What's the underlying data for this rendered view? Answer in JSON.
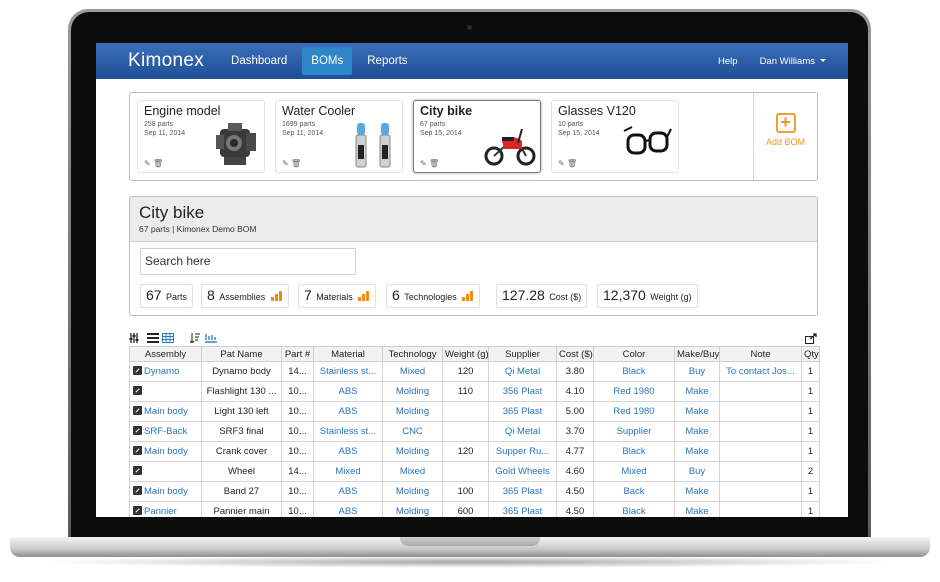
{
  "nav": {
    "brand": "Kimonex",
    "items": [
      "Dashboard",
      "BOMs",
      "Reports"
    ],
    "active": "BOMs",
    "help": "Help",
    "user": "Dan Williams"
  },
  "bom_cards": [
    {
      "title": "Engine model",
      "parts": "258 parts",
      "date": "Sep 11, 2014",
      "image_icon": "engine-image"
    },
    {
      "title": "Water Cooler",
      "parts": "1699 parts",
      "date": "Sep 11, 2014",
      "image_icon": "water-cooler-image"
    },
    {
      "title": "City bike",
      "parts": "67 parts",
      "date": "Sep 15, 2014",
      "image_icon": "scooter-image"
    },
    {
      "title": "Glasses V120",
      "parts": "10 parts",
      "date": "Sep 15, 2014",
      "image_icon": "glasses-image"
    }
  ],
  "card_actions": {
    "edit": "✎",
    "delete": "🗑"
  },
  "add_bom": {
    "label": "Add BOM",
    "icon": "+"
  },
  "detail": {
    "title": "City bike",
    "subtitle": "67 parts | Kimonex Demo BOM",
    "search_placeholder": "Search here",
    "stats": [
      {
        "num": "67",
        "label": "Parts"
      },
      {
        "num": "8",
        "label": "Assemblies"
      },
      {
        "num": "7",
        "label": "Materials"
      },
      {
        "num": "6",
        "label": "Technologies"
      },
      {
        "num": "127.28",
        "label": "Cost ($)"
      },
      {
        "num": "12,370",
        "label": "Weight (g)"
      }
    ]
  },
  "colors": {
    "nav": "#2a5ea8",
    "active_tab": "#2e86c9",
    "link": "#2a73b8",
    "accent": "#f28a1a"
  },
  "table": {
    "columns": [
      "Assembly",
      "Pat Name",
      "Part #",
      "Material",
      "Technology",
      "Weight (g)",
      "Supplier",
      "Cost ($)",
      "Color",
      "Make/Buy",
      "Note",
      "Qty."
    ],
    "rows": [
      [
        "Dynamo",
        "Dynamo body",
        "14...",
        "Stainless st...",
        "Mixed",
        "120",
        "Qi Metal",
        "3.80",
        "Black",
        "Buy",
        "To contact Jos...",
        "1"
      ],
      [
        "",
        "Flashlight 130 ...",
        "10...",
        "ABS",
        "Molding",
        "110",
        "356 Plast",
        "4.10",
        "Red 1980",
        "Make",
        "",
        "1"
      ],
      [
        "Main body",
        "Light 130 left",
        "10...",
        "ABS",
        "Molding",
        "",
        "365 Plast",
        "5.00",
        "Red 1980",
        "Make",
        "",
        "1"
      ],
      [
        "SRF-Back",
        "SRF3 final",
        "10...",
        "Stainless st...",
        "CNC",
        "",
        "Qi Metal",
        "3.70",
        "Supplier",
        "Make",
        "",
        "1"
      ],
      [
        "Main body",
        "Crank cover",
        "10...",
        "ABS",
        "Molding",
        "120",
        "Supper Ru...",
        "4.77",
        "Black",
        "Make",
        "",
        "1"
      ],
      [
        "",
        "Wheel",
        "14...",
        "Mixed",
        "Mixed",
        "",
        "Gold Wheels",
        "4.60",
        "Mixed",
        "Buy",
        "",
        "2"
      ],
      [
        "Main body",
        "Band 27",
        "10...",
        "ABS",
        "Molding",
        "100",
        "365 Plast",
        "4.50",
        "Back",
        "Make",
        "",
        "1"
      ],
      [
        "Pannier",
        "Pannier main",
        "10...",
        "ABS",
        "Molding",
        "600",
        "365 Plast",
        "4.50",
        "Black",
        "Make",
        "",
        "1"
      ]
    ]
  }
}
